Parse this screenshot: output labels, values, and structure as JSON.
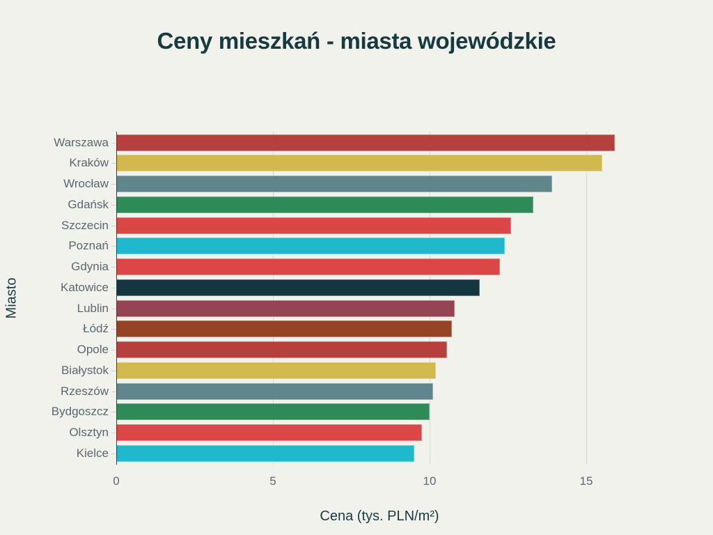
{
  "title": "Ceny mieszkań - miasta wojewódzkie",
  "chart_data": {
    "type": "bar",
    "orientation": "horizontal",
    "title": "Ceny mieszkań - miasta wojewódzkie",
    "xlabel": "Cena (tys. PLN/m²)",
    "ylabel": "Miasto",
    "xlim": [
      0,
      16.5
    ],
    "xticks": [
      "0",
      "5",
      "10",
      "15"
    ],
    "grid": true,
    "legend": false,
    "categories": [
      "Warszawa",
      "Kraków",
      "Wrocław",
      "Gdańsk",
      "Szczecin",
      "Poznań",
      "Gdynia",
      "Katowice",
      "Lublin",
      "Łódź",
      "Opole",
      "Białystok",
      "Rzeszów",
      "Bydgoszcz",
      "Olsztyn",
      "Kielce"
    ],
    "values": [
      15.9,
      15.5,
      13.9,
      13.3,
      12.6,
      12.4,
      12.25,
      11.6,
      10.8,
      10.7,
      10.55,
      10.2,
      10.1,
      10.0,
      9.75,
      9.5
    ],
    "colors": [
      "#b5403e",
      "#d2b94e",
      "#5e868c",
      "#2e8b57",
      "#db4646",
      "#1fb8cd",
      "#db4646",
      "#143640",
      "#944455",
      "#964325",
      "#b5403e",
      "#d2b94e",
      "#5e868c",
      "#2e8b57",
      "#db4646",
      "#1fb8cd"
    ]
  },
  "axes": {
    "x_title": "Cena (tys. PLN/m²)",
    "y_title": "Miasto",
    "x_ticks": [
      {
        "label": "0",
        "value": 0
      },
      {
        "label": "5",
        "value": 5
      },
      {
        "label": "10",
        "value": 10
      },
      {
        "label": "15",
        "value": 15
      }
    ]
  }
}
